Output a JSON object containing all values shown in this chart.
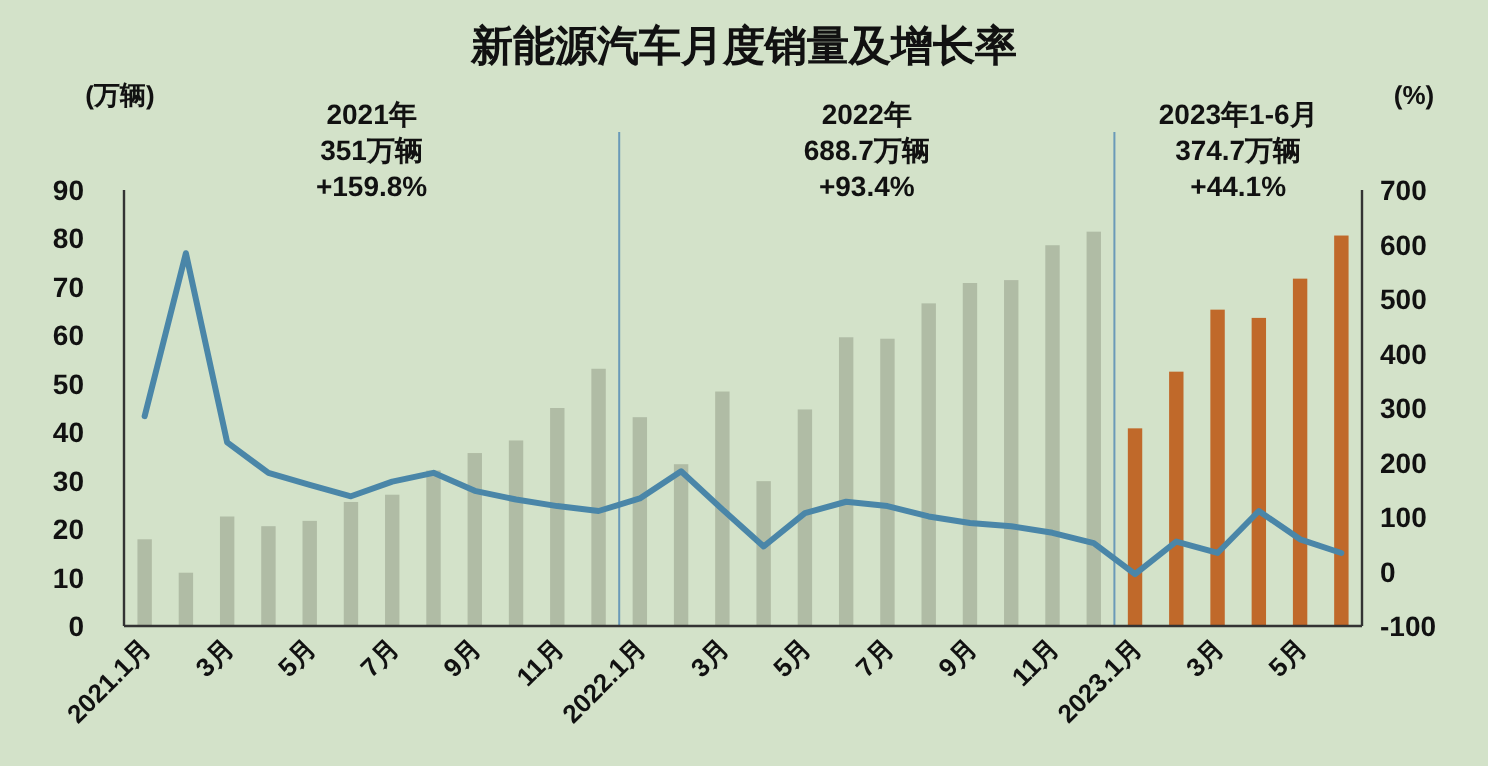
{
  "chart_data": {
    "type": "bar",
    "title": "新能源汽车月度销量及增长率",
    "ylabel": "(万辆)",
    "y2label": "(%)",
    "categories": [
      "2021.1月",
      null,
      "3月",
      null,
      "5月",
      null,
      "7月",
      null,
      "9月",
      null,
      "11月",
      null,
      "2022.1月",
      null,
      "3月",
      null,
      "5月",
      null,
      "7月",
      null,
      "9月",
      null,
      "11月",
      null,
      "2023.1月",
      null,
      "3月",
      null,
      "5月",
      null
    ],
    "ylim": [
      0,
      90
    ],
    "yticks": [
      0,
      10,
      20,
      30,
      40,
      50,
      60,
      70,
      80,
      90
    ],
    "y2lim": [
      -100,
      700
    ],
    "y2ticks": [
      -100,
      0,
      100,
      200,
      300,
      400,
      500,
      600,
      700
    ],
    "series": [
      {
        "values": [
          17.9,
          11.0,
          22.6,
          20.6,
          21.7,
          25.6,
          27.1,
          32.1,
          35.7,
          38.3,
          45.0,
          53.1,
          43.1,
          33.4,
          48.4,
          29.9,
          44.7,
          59.6,
          59.3,
          66.6,
          70.8,
          71.4,
          78.6,
          81.4,
          40.8,
          52.5,
          65.3,
          63.6,
          71.7,
          80.6
        ],
        "colors": [
          "#b0bca5",
          "#b0bca5",
          "#b0bca5",
          "#b0bca5",
          "#b0bca5",
          "#b0bca5",
          "#b0bca5",
          "#b0bca5",
          "#b0bca5",
          "#b0bca5",
          "#b0bca5",
          "#b0bca5",
          "#b0bca5",
          "#b0bca5",
          "#b0bca5",
          "#b0bca5",
          "#b0bca5",
          "#b0bca5",
          "#b0bca5",
          "#b0bca5",
          "#b0bca5",
          "#b0bca5",
          "#b0bca5",
          "#b0bca5",
          "#c0692a",
          "#c0692a",
          "#c0692a",
          "#c0692a",
          "#c0692a",
          "#c0692a"
        ]
      },
      {
        "type": "line",
        "axis": "y2",
        "color": "#4a86a8",
        "values": [
          285,
          584,
          237,
          181,
          159,
          138,
          165,
          181,
          148,
          132,
          120,
          111,
          134,
          184,
          114,
          46,
          107,
          128,
          120,
          101,
          89,
          83,
          71,
          52,
          -5,
          55,
          34,
          111,
          59,
          34
        ]
      }
    ],
    "annotations": [
      "2021年\n351万辆\n+159.8%",
      "2022年\n688.7万辆\n+93.4%",
      "2023年1-6月\n374.7万辆\n+44.1%"
    ]
  }
}
